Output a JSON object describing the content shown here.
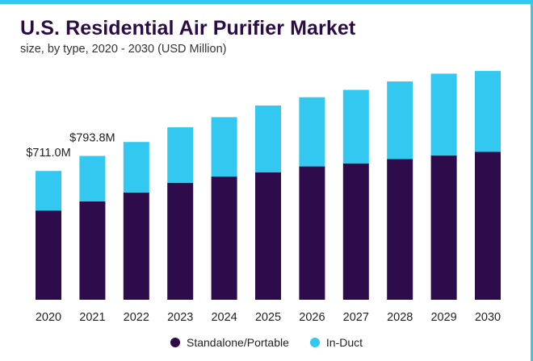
{
  "header": {
    "title": "U.S. Residential Air Purifier Market",
    "subtitle": "size, by type, 2020 - 2030 (USD Million)"
  },
  "colors": {
    "standalone": "#2e0b4a",
    "induct": "#33c8f0",
    "accent": "#33c8f0"
  },
  "chart_data": {
    "type": "bar",
    "stacked": true,
    "categories": [
      "2020",
      "2021",
      "2022",
      "2023",
      "2024",
      "2025",
      "2026",
      "2027",
      "2028",
      "2029",
      "2030"
    ],
    "series": [
      {
        "name": "Standalone/Portable",
        "values": [
          493,
          543,
          592,
          646,
          680,
          703,
          736,
          753,
          777,
          797,
          817
        ]
      },
      {
        "name": "In-Duct",
        "values": [
          218,
          251,
          279,
          306,
          328,
          369,
          382,
          406,
          428,
          451,
          446
        ]
      }
    ],
    "totals": [
      711.0,
      793.8,
      871,
      952,
      1008,
      1072,
      1118,
      1159,
      1205,
      1248,
      1263
    ],
    "data_labels": [
      {
        "category": "2020",
        "text": "$711.0M"
      },
      {
        "category": "2021",
        "text": "$793.8M"
      }
    ],
    "title": "U.S. Residential Air Purifier Market",
    "subtitle": "size, by type, 2020 - 2030 (USD Million)",
    "ylim": [
      0,
      1300
    ],
    "grid": false,
    "y_axis_visible": false,
    "legend": {
      "position": "bottom",
      "items": [
        "Standalone/Portable",
        "In-Duct"
      ]
    }
  }
}
